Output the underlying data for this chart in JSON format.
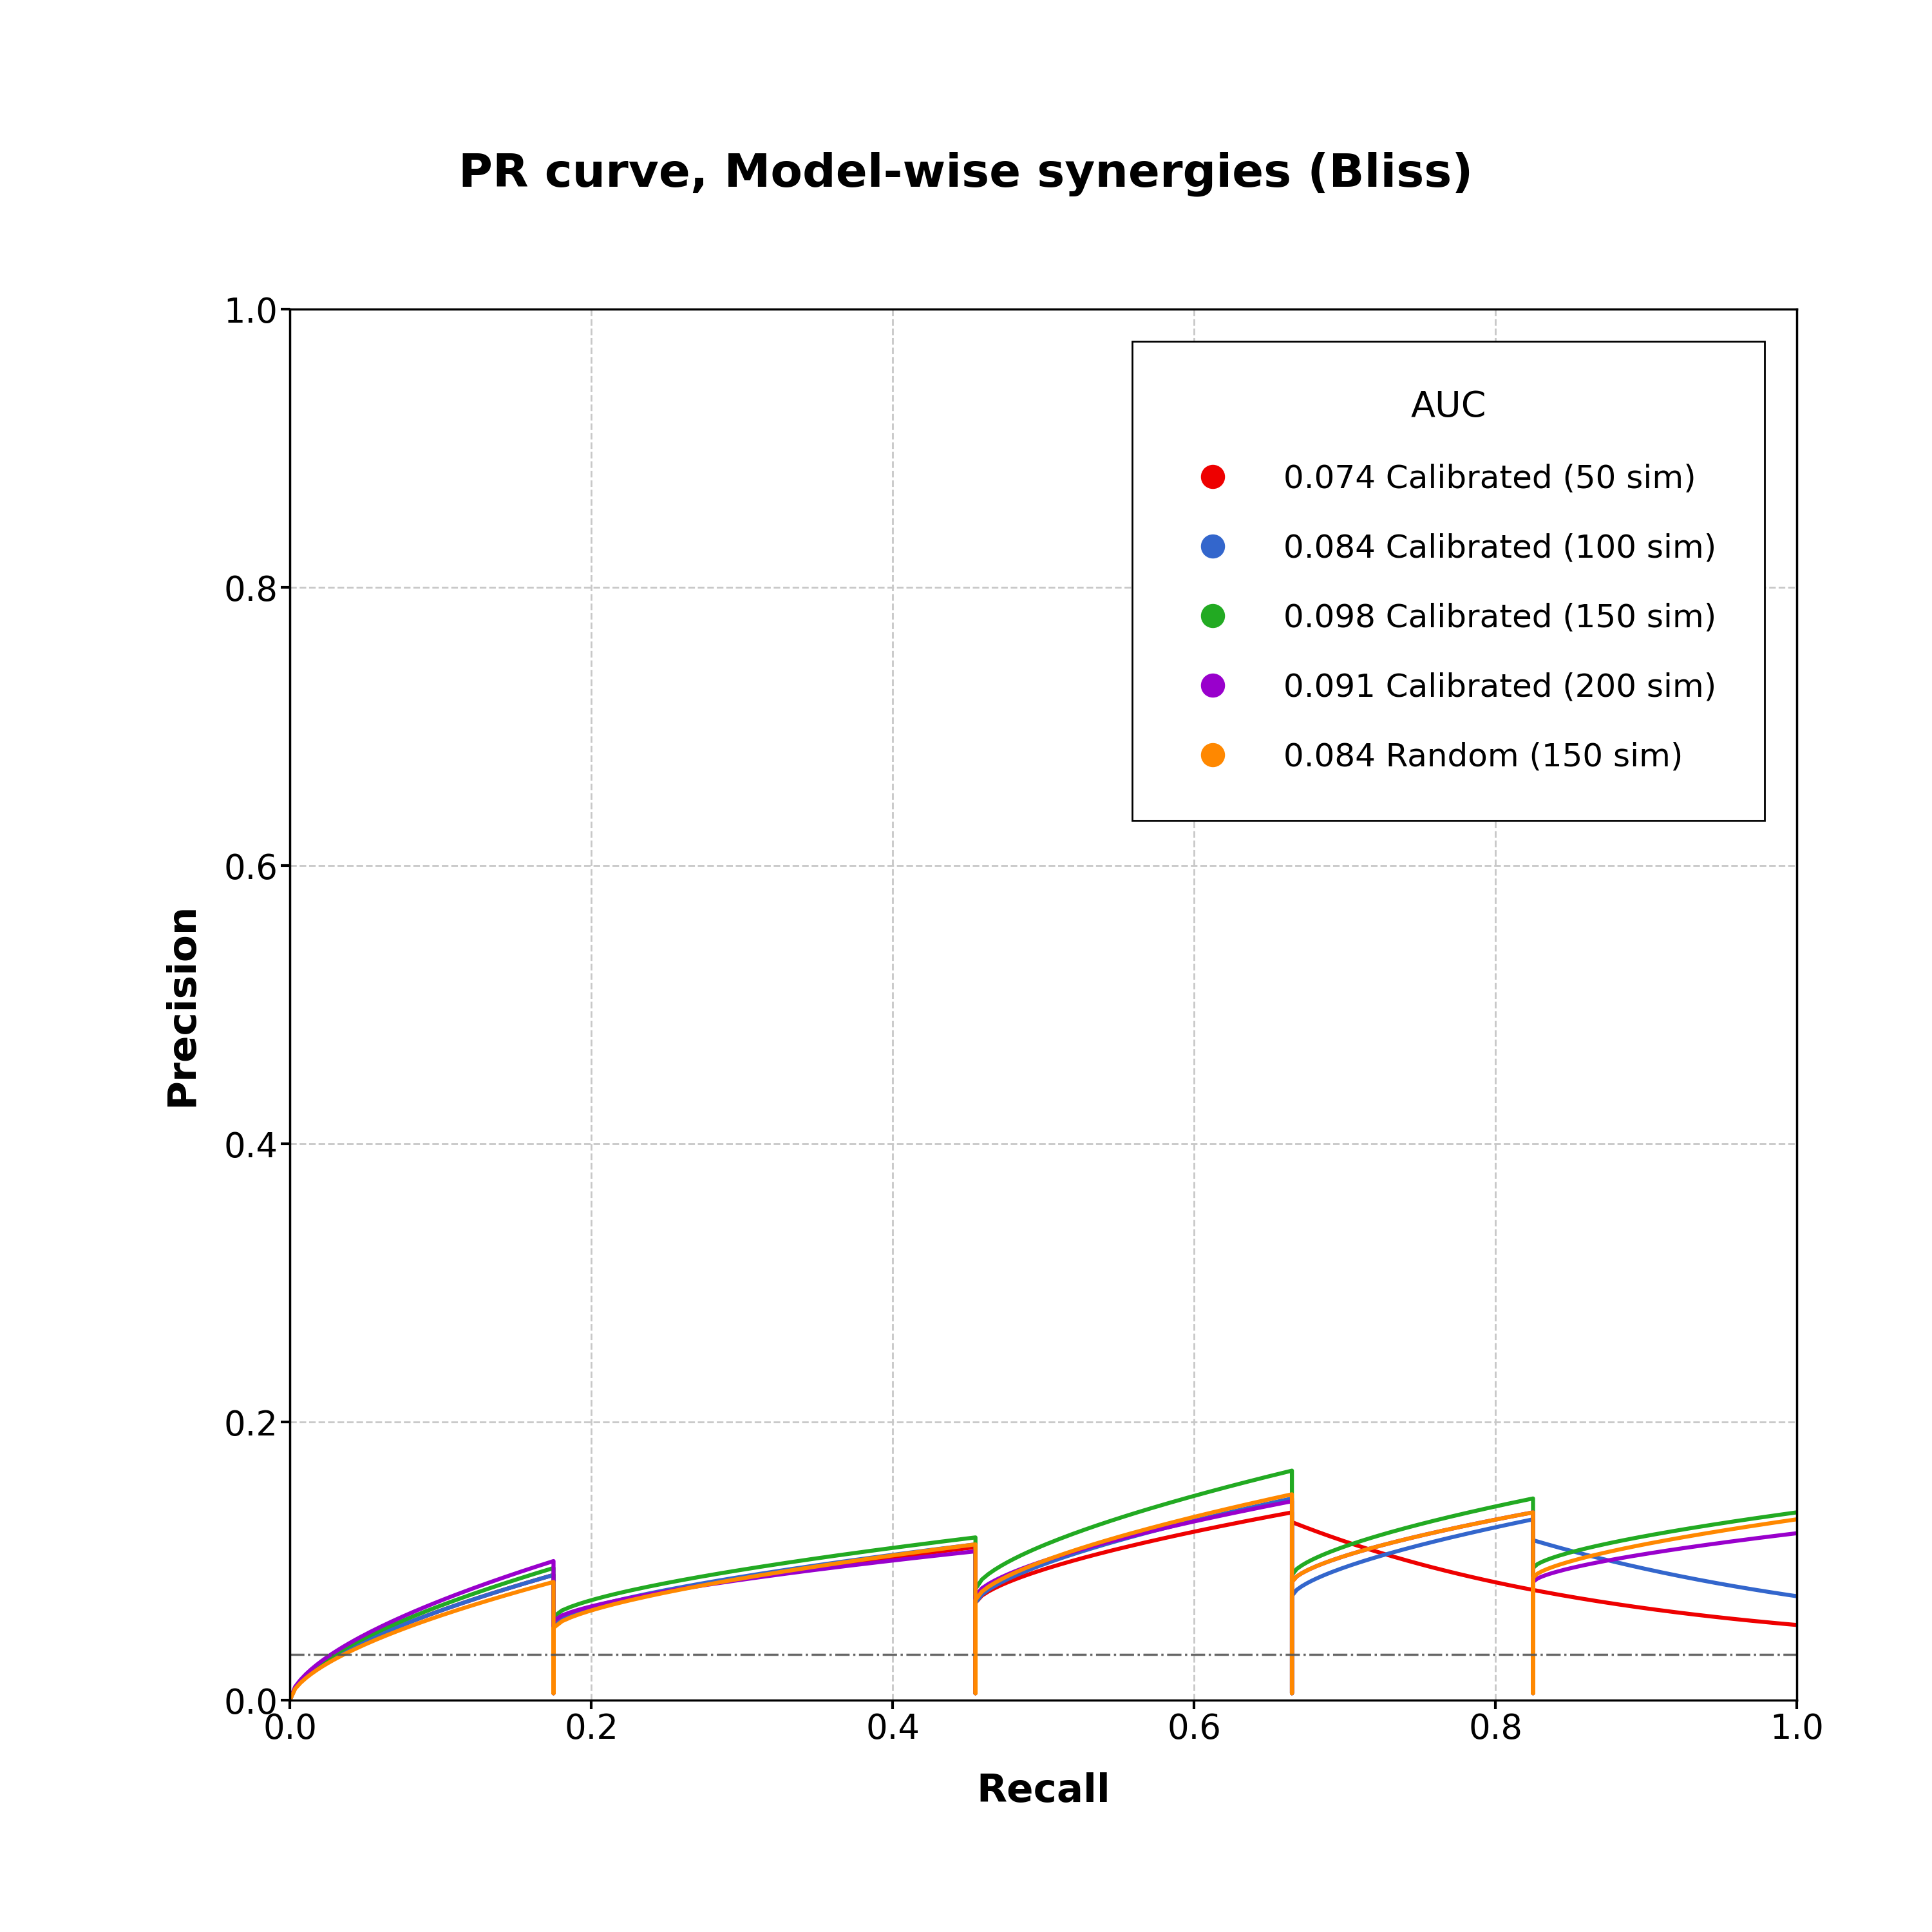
{
  "title": "PR curve, Model-wise synergies (Bliss)",
  "xlabel": "Recall",
  "ylabel": "Precision",
  "xlim": [
    0.0,
    1.0
  ],
  "ylim": [
    0.0,
    1.0
  ],
  "baseline_y": 0.033,
  "background_color": "#ffffff",
  "grid_color": "#c8c8c8",
  "legend_title": "AUC",
  "curves": [
    {
      "label": "0.074 Calibrated (50 sim)",
      "color": "#EE0000",
      "auc": 0.074
    },
    {
      "label": "0.084 Calibrated (100 sim)",
      "color": "#3366CC",
      "auc": 0.084
    },
    {
      "label": "0.098 Calibrated (150 sim)",
      "color": "#22AA22",
      "auc": 0.098
    },
    {
      "label": "0.091 Calibrated (200 sim)",
      "color": "#9900CC",
      "auc": 0.091
    },
    {
      "label": "0.084 Random (150 sim)",
      "color": "#FF8800",
      "auc": 0.084
    }
  ],
  "title_fontsize": 52,
  "axis_label_fontsize": 44,
  "tick_fontsize": 38,
  "legend_fontsize": 36,
  "legend_title_fontsize": 40,
  "line_width": 4.5
}
